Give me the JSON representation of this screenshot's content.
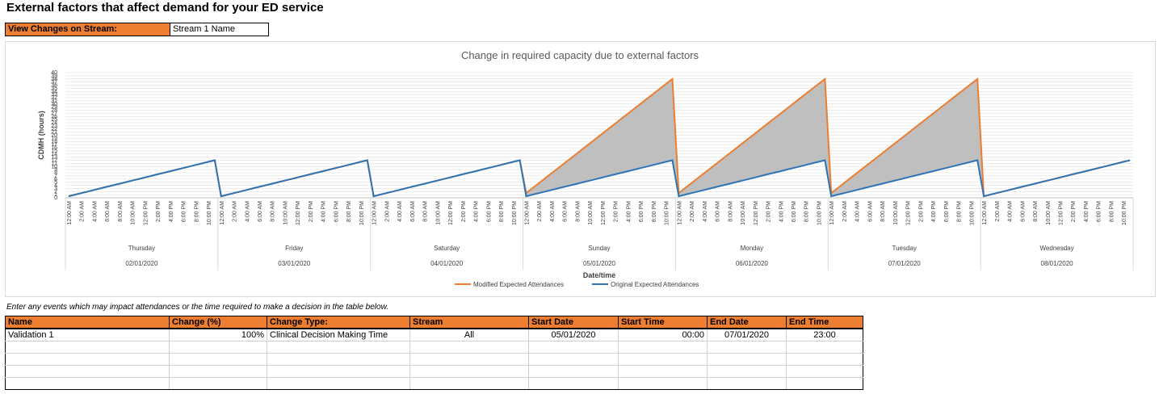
{
  "page": {
    "title": "External factors that affect demand for your ED service",
    "stream_label": "View Changes on Stream:",
    "stream_value": "Stream 1 Name",
    "instruction": "Enter any events which may impact attendances or the time required to make a decision in the table below."
  },
  "chart_data": {
    "type": "area",
    "title": "Change in required capacity due to external factors",
    "xlabel": "Date/time",
    "ylabel": "CDMH (hours)",
    "ylim": [
      0,
      40
    ],
    "yticks": [
      0,
      1,
      2,
      3,
      4,
      5,
      6,
      7,
      8,
      9,
      10,
      11,
      12,
      13,
      14,
      15,
      16,
      17,
      18,
      19,
      20,
      21,
      22,
      23,
      24,
      25,
      26,
      27,
      28,
      29,
      30,
      31,
      32,
      33,
      34,
      35,
      36,
      37,
      38,
      39,
      40
    ],
    "hour_labels": [
      "12:00 AM",
      "2:00 AM",
      "4:00 AM",
      "6:00 AM",
      "8:00 AM",
      "10:00 AM",
      "12:00 PM",
      "2:00 PM",
      "4:00 PM",
      "6:00 PM",
      "8:00 PM",
      "10:00 PM"
    ],
    "days": [
      {
        "day": "Thursday",
        "date": "02/01/2020"
      },
      {
        "day": "Friday",
        "date": "03/01/2020"
      },
      {
        "day": "Saturday",
        "date": "04/01/2020"
      },
      {
        "day": "Sunday",
        "date": "05/01/2020"
      },
      {
        "day": "Monday",
        "date": "06/01/2020"
      },
      {
        "day": "Tuesday",
        "date": "07/01/2020"
      },
      {
        "day": "Wednesday",
        "date": "08/01/2020"
      }
    ],
    "series": [
      {
        "name": "Modified Expected Attendances",
        "color": "#ed7d31",
        "daily_start": [
          0.5,
          0.5,
          0.5,
          1.5,
          1.5,
          1.5,
          0.5
        ],
        "daily_end": [
          12,
          12,
          12,
          38,
          38,
          38,
          12
        ]
      },
      {
        "name": "Original Expected Attendances",
        "color": "#2e75b6",
        "daily_start": [
          0.5,
          0.5,
          0.5,
          0.5,
          0.5,
          0.5,
          0.5
        ],
        "daily_end": [
          12,
          12,
          12,
          12,
          12,
          12,
          12
        ]
      }
    ],
    "fill_color": "#bfbfbf",
    "grid": true,
    "legend_position": "bottom"
  },
  "events_table": {
    "headers": [
      "Name",
      "Change (%)",
      "Change Type:",
      "Stream",
      "Start Date",
      "Start Time",
      "End Date",
      "End Time"
    ],
    "rows": [
      [
        "Validation 1",
        "100%",
        "Clinical Decision Making Time",
        "All",
        "05/01/2020",
        "00:00",
        "07/01/2020",
        "23:00"
      ],
      [
        "",
        "",
        "",
        "",
        "",
        "",
        "",
        ""
      ],
      [
        "",
        "",
        "",
        "",
        "",
        "",
        "",
        ""
      ],
      [
        "",
        "",
        "",
        "",
        "",
        "",
        "",
        ""
      ],
      [
        "",
        "",
        "",
        "",
        "",
        "",
        "",
        ""
      ]
    ]
  }
}
